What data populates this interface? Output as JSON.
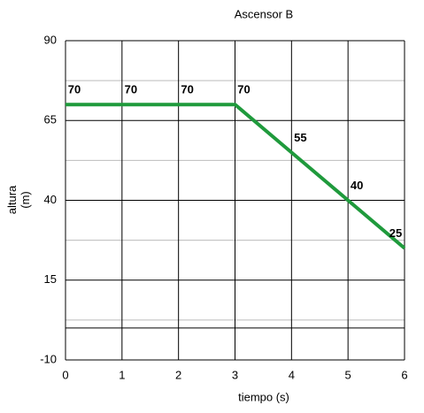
{
  "chart_data": {
    "type": "line",
    "title": "Ascensor B",
    "x_label": "tiempo (s)",
    "y_label": "altura (m)",
    "x": [
      0,
      1,
      2,
      3,
      4,
      5,
      6
    ],
    "series": [
      {
        "name": "altura",
        "color": "#1f9a3c",
        "values": [
          70,
          70,
          70,
          70,
          55,
          40,
          25
        ]
      }
    ],
    "xlim": [
      0,
      6
    ],
    "xticks": [
      0,
      1,
      2,
      3,
      4,
      5,
      6
    ],
    "ylim": [
      -10,
      90
    ],
    "yticks": [
      -10,
      15,
      40,
      65,
      90
    ],
    "y_minor_ticks": [
      2.5,
      27.5,
      52.5,
      77.5
    ],
    "reference_line": 0,
    "grid": true,
    "data_labels": true,
    "legend": false
  }
}
